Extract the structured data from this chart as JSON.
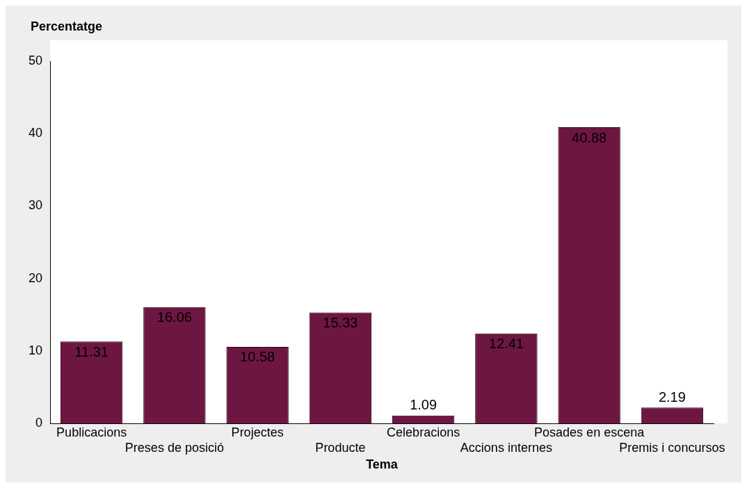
{
  "chart_data": {
    "type": "bar",
    "xlabel": "Tema",
    "ylabel": "Percentatge",
    "categories": [
      "Publicacions",
      "Preses de posició",
      "Projectes",
      "Producte",
      "Celebracions",
      "Accions internes",
      "Posades en escena",
      "Premis i concursos"
    ],
    "values": [
      11.31,
      16.06,
      10.58,
      15.33,
      1.09,
      12.41,
      40.88,
      2.19
    ],
    "color": "#6e1642",
    "ylim": [
      0,
      50
    ],
    "yticks": [
      0,
      10,
      20,
      30,
      40,
      50
    ],
    "data_labels": true,
    "grid": false,
    "legend": false
  }
}
